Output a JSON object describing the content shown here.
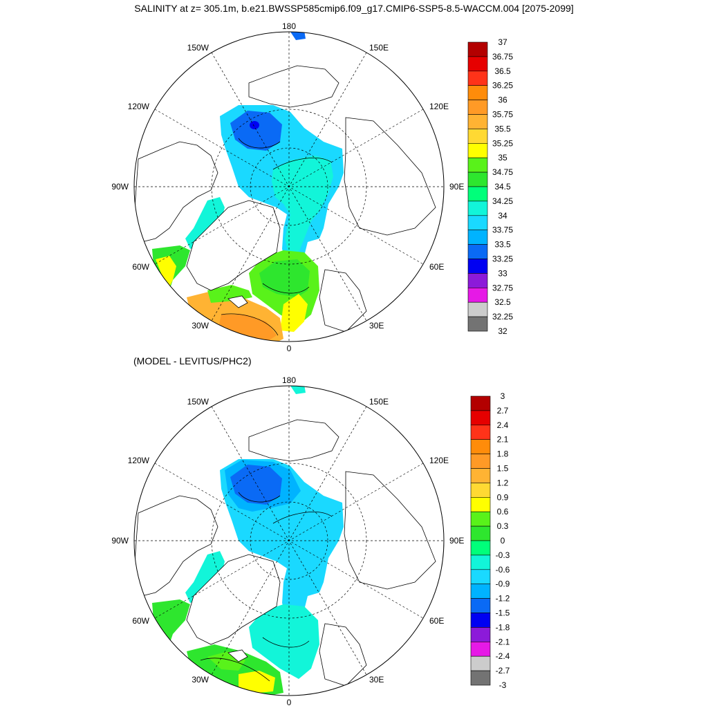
{
  "titles": {
    "main": "SALINITY at z= 305.1m, b.e21.BWSSP585cmip6.f09_g17.CMIP6-SSP5-8.5-WACCM.004 [2075-2099]",
    "difference": "(MODEL - LEVITUS/PHC2)"
  },
  "colors": {
    "land": "#ffffff",
    "coast": "#000000",
    "grid": "#000000",
    "palette": [
      "#737373",
      "#cccccc",
      "#e619e6",
      "#8c1ad9",
      "#0000f2",
      "#0a6af5",
      "#00b3ff",
      "#1ad9ff",
      "#12f5d9",
      "#00ff7a",
      "#2ee62e",
      "#59f21a",
      "#ffff00",
      "#ffd933",
      "#ffb333",
      "#ff9a26",
      "#ff8c0a",
      "#ff3319",
      "#e60000",
      "#b30000"
    ]
  },
  "maps": [
    {
      "id": "salinity",
      "lon_labels": [
        "180",
        "150E",
        "120E",
        "90E",
        "60E",
        "30E",
        "0",
        "30W",
        "60W",
        "90W",
        "120W",
        "150W"
      ],
      "colorbar": {
        "labels": [
          "37",
          "36.75",
          "36.5",
          "36.25",
          "36",
          "35.75",
          "35.5",
          "35.25",
          "35",
          "34.75",
          "34.5",
          "34.25",
          "34",
          "33.75",
          "33.5",
          "33.25",
          "33",
          "32.75",
          "32.5",
          "32.25",
          "32"
        ]
      }
    },
    {
      "id": "difference",
      "lon_labels": [
        "180",
        "150E",
        "120E",
        "90E",
        "60E",
        "30E",
        "0",
        "30W",
        "60W",
        "90W",
        "120W",
        "150W"
      ],
      "colorbar": {
        "labels": [
          "3",
          "2.7",
          "2.4",
          "2.1",
          "1.8",
          "1.5",
          "1.2",
          "0.9",
          "0.6",
          "0.3",
          "0",
          "-0.3",
          "-0.6",
          "-0.9",
          "-1.2",
          "-1.5",
          "-1.8",
          "-2.1",
          "-2.4",
          "-2.7",
          "-3"
        ]
      }
    }
  ]
}
